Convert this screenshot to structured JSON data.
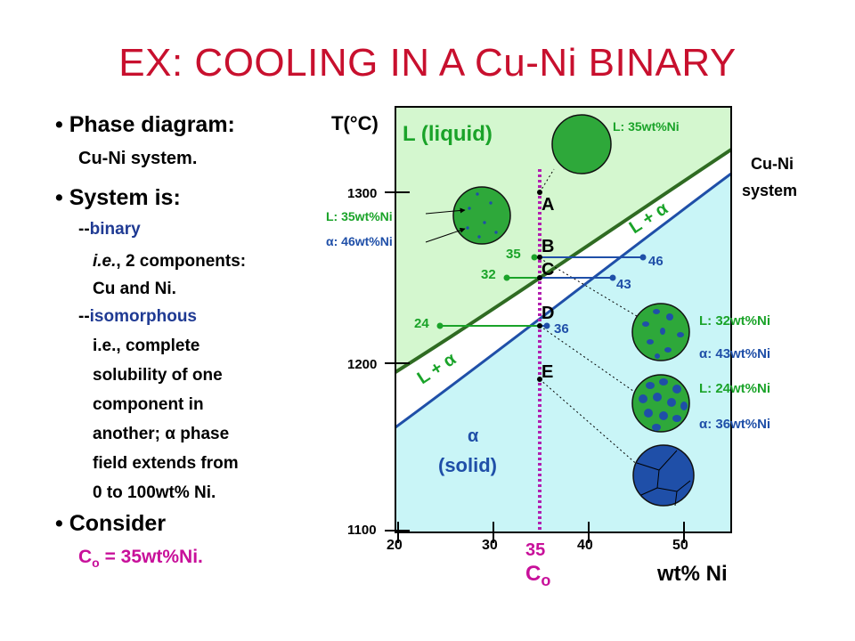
{
  "title": "EX:  COOLING IN A Cu-Ni BINARY",
  "left": {
    "b1_head": "Phase diagram:",
    "b1_sub": "Cu-Ni system.",
    "b2_head": "System is:",
    "binary_prefix": "--",
    "binary": "binary",
    "ie_italic": "i.e.",
    "ie_rest": ", 2 components:",
    "cu_ni": "Cu and Ni.",
    "iso_prefix": "--",
    "isomorphous": "isomorphous",
    "iso_lines": [
      "i.e., complete",
      "solubility of one",
      "component in",
      "another; α phase",
      "field extends from",
      "0 to 100wt% Ni."
    ],
    "b3_head": "Consider",
    "co_c": "C",
    "co_sub": "o",
    "co_rest": " = 35wt%Ni."
  },
  "diagram": {
    "y_axis_title": "T(°C)",
    "y_ticks": [
      "1300",
      "1200",
      "1100"
    ],
    "x_ticks": [
      "20",
      "30",
      "40",
      "50"
    ],
    "x_axis_title": "wt% Ni",
    "co_value": "35",
    "co_c": "C",
    "co_sub": "o",
    "system_label_1": "Cu-Ni",
    "system_label_2": "system",
    "liquid_label": "L (liquid)",
    "solid_alpha": "α",
    "solid_label": "(solid)",
    "l_alpha_upper": "L + α",
    "l_alpha_lower": "L + α",
    "points": [
      "A",
      "B",
      "C",
      "D",
      "E"
    ],
    "tie_values": {
      "b_left": "35",
      "b_right": "46",
      "c_left": "32",
      "c_right": "43",
      "d_left": "24",
      "d_right": "36"
    },
    "annot": {
      "top": "L: 35wt%Ni",
      "b_l": "L: 35wt%Ni",
      "b_a": "α: 46wt%Ni",
      "c_l": "L:  32wt%Ni",
      "c_a": "α: 43wt%Ni",
      "d_l": "L: 24wt%Ni",
      "d_a": "α: 36wt%Ni"
    }
  },
  "colors": {
    "title": "#c8102e",
    "liquid_region": "#d4f7cf",
    "solid_region": "#c9f5f7",
    "liquidus": "#2f6b22",
    "solidus": "#1f4fa8",
    "tie_green": "#1aa329",
    "tie_blue": "#1f4fa8",
    "composition_line": "#b21fb0",
    "text_green": "#1aa329",
    "text_blue": "#1f4fa8",
    "text_magenta": "#c8109a"
  }
}
